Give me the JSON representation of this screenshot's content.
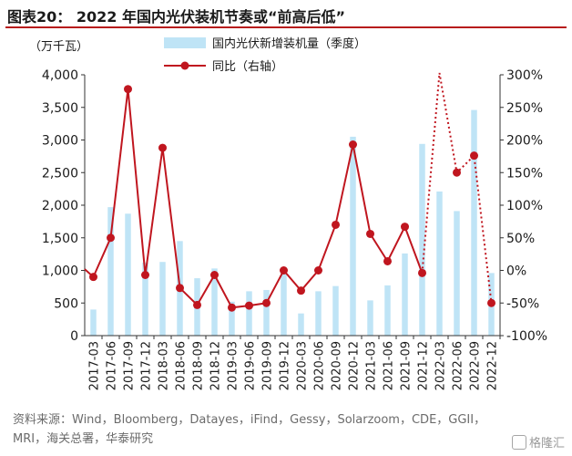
{
  "title": "图表20： 2022 年国内光伏装机节奏或“前高后低”",
  "source_text": "资料来源：Wind，Bloomberg，Datayes，iFind，Gessy，Solarzoom，CDE，GGII，MRI，海关总署，华泰研究",
  "watermark": "格隆汇",
  "watermark_icon": "glh-logo-icon",
  "chart_data": {
    "type": "bar",
    "ylabel": "（万千瓦）",
    "categories": [
      "2017-03",
      "2017-06",
      "2017-09",
      "2017-12",
      "2018-03",
      "2018-06",
      "2018-09",
      "2018-12",
      "2019-03",
      "2019-06",
      "2019-09",
      "2019-12",
      "2020-03",
      "2020-06",
      "2020-09",
      "2020-12",
      "2021-03",
      "2021-06",
      "2021-09",
      "2021-12",
      "2022-03",
      "2022-06",
      "2022-09",
      "2022-12"
    ],
    "y_ticks": [
      "0",
      "500",
      "1,000",
      "1,500",
      "2,000",
      "2,500",
      "3,000",
      "3,500",
      "4,000"
    ],
    "ylim": [
      0,
      4000
    ],
    "y2_ticks": [
      "-100%",
      "-50%",
      "0%",
      "50%",
      "100%",
      "150%",
      "200%",
      "250%",
      "300%"
    ],
    "y2lim": [
      -100,
      300
    ],
    "series": [
      {
        "name": "国内光伏新增装机量（季度）",
        "type": "bar",
        "color": "#bfe4f6",
        "values": [
          400,
          1970,
          1870,
          1120,
          1130,
          1450,
          880,
          1030,
          520,
          680,
          700,
          1030,
          340,
          680,
          760,
          3050,
          540,
          770,
          1260,
          2940,
          2210,
          1910,
          3460,
          960
        ]
      },
      {
        "name": "同比（右轴）",
        "type": "line",
        "color": "#c0161f",
        "values": [
          -10,
          50,
          278,
          -7,
          188,
          -27,
          -53,
          -7,
          -57,
          -54,
          -50,
          0,
          -31,
          0,
          70,
          193,
          56,
          14,
          67,
          -4,
          304,
          150,
          176,
          -50
        ]
      }
    ],
    "forecast_from_index": 19,
    "grid": false,
    "legend_position": "top-center"
  }
}
